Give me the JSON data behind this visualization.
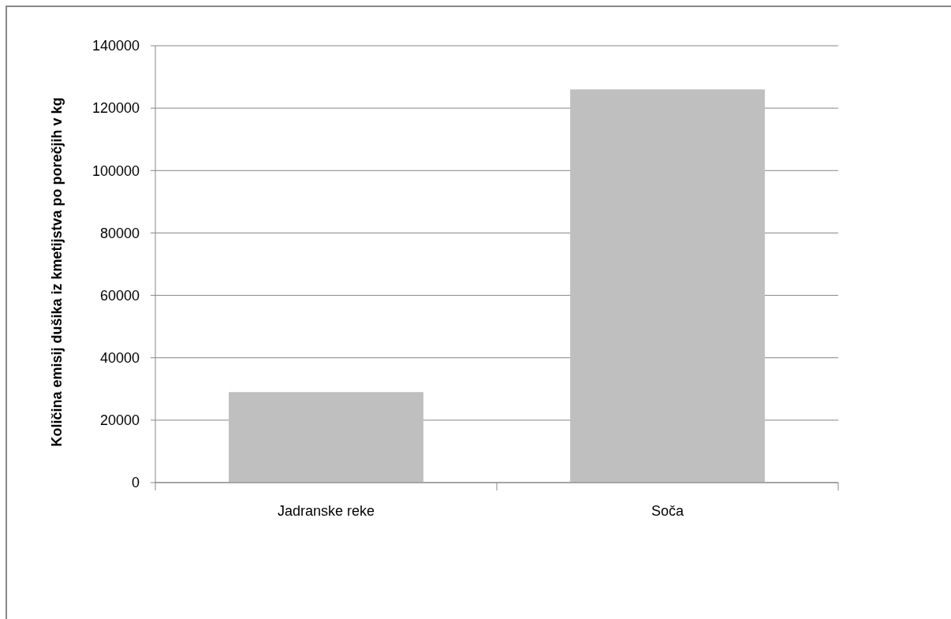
{
  "chart_data": {
    "type": "bar",
    "ylabel": "Količina emisij dušika iz kmetijstva po porečjih v kg",
    "categories": [
      "Jadranske reke",
      "Soča"
    ],
    "values": [
      29000,
      126000
    ],
    "color": "#bfbfbf",
    "ylim": [
      0,
      140000
    ],
    "yticks": [
      0,
      20000,
      40000,
      60000,
      80000,
      100000,
      120000,
      140000
    ],
    "grid": "y"
  }
}
